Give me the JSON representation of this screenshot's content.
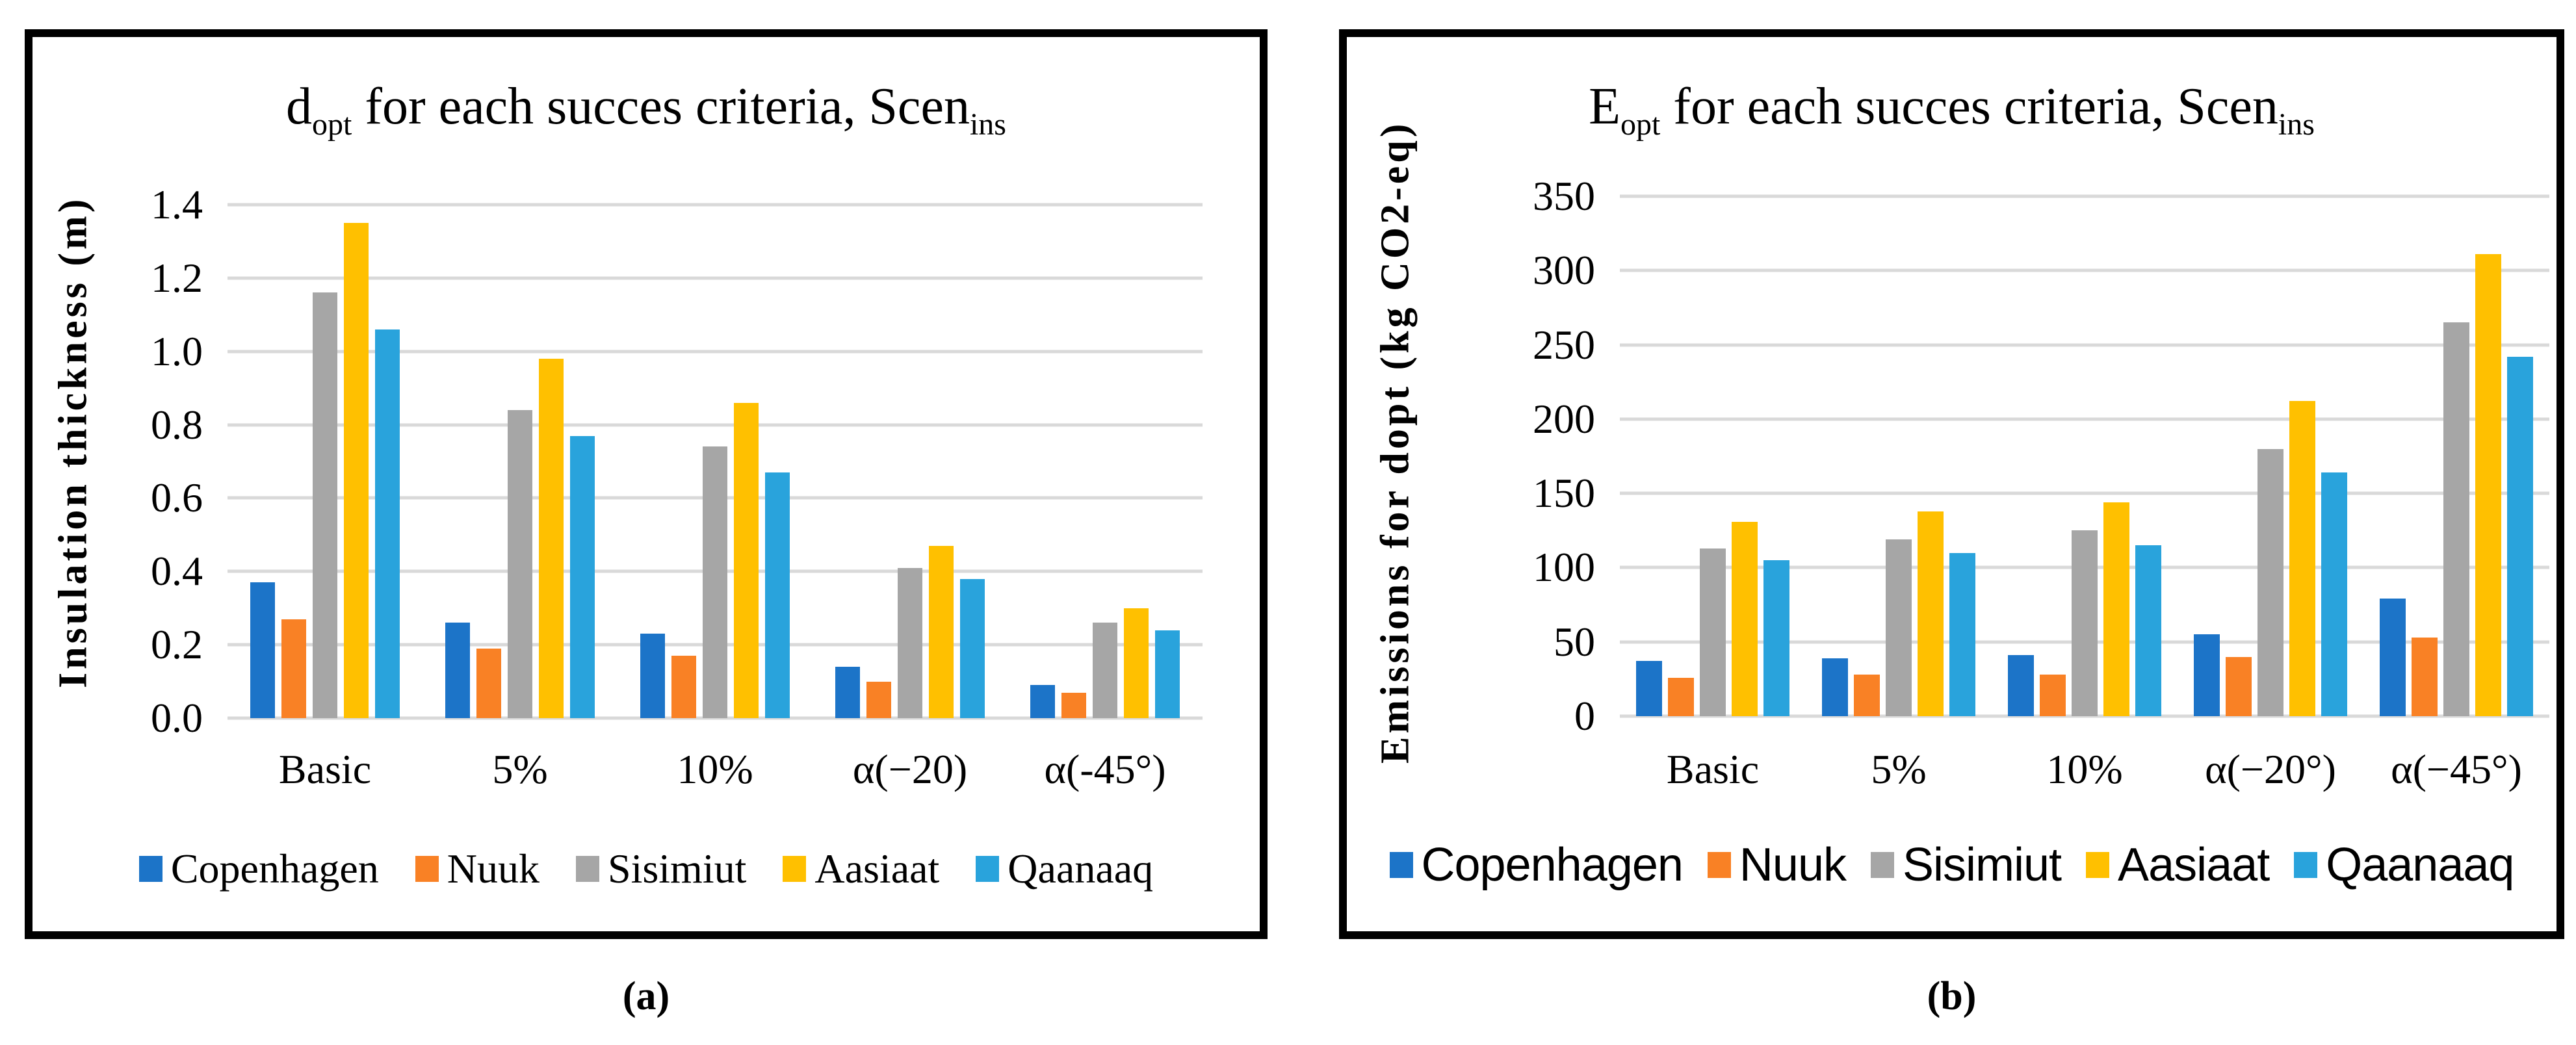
{
  "figure": {
    "captions": [
      "(a)",
      "(b)"
    ]
  },
  "chart_data": [
    {
      "type": "bar",
      "panel": "a",
      "title": "d_opt for each succes criteria, Scen_ins",
      "title_parts": [
        {
          "t": "d"
        },
        {
          "t": "opt",
          "sub": true
        },
        {
          "t": " for each succes criteria, Scen"
        },
        {
          "t": "ins",
          "sub": true
        }
      ],
      "ylabel": "Insulation thickness (m)",
      "xlabel": "",
      "ylim": [
        0,
        1.4
      ],
      "ytick_labels": [
        "0.0",
        "0.2",
        "0.4",
        "0.6",
        "0.8",
        "1.0",
        "1.2",
        "1.4"
      ],
      "grid": true,
      "legend_position": "bottom",
      "categories": [
        "Basic",
        "5%",
        "10%",
        "α(−20)",
        "α(-45°)"
      ],
      "series": [
        {
          "name": "Copenhagen",
          "color": "#1c74c8",
          "values": [
            0.37,
            0.26,
            0.23,
            0.14,
            0.09
          ]
        },
        {
          "name": "Nuuk",
          "color": "#f98125",
          "values": [
            0.27,
            0.19,
            0.17,
            0.1,
            0.07
          ]
        },
        {
          "name": "Sisimiut",
          "color": "#a6a6a6",
          "values": [
            1.16,
            0.84,
            0.74,
            0.41,
            0.26
          ]
        },
        {
          "name": "Aasiaat",
          "color": "#ffc000",
          "values": [
            1.35,
            0.98,
            0.86,
            0.47,
            0.3
          ]
        },
        {
          "name": "Qaanaaq",
          "color": "#29a3dc",
          "values": [
            1.06,
            0.77,
            0.67,
            0.38,
            0.24
          ]
        }
      ]
    },
    {
      "type": "bar",
      "panel": "b",
      "title": "E_opt for each succes criteria, Scen_ins",
      "title_parts": [
        {
          "t": "E"
        },
        {
          "t": "opt",
          "sub": true
        },
        {
          "t": " for each succes criteria, Scen"
        },
        {
          "t": "ins",
          "sub": true
        }
      ],
      "ylabel": "Emissions for dopt (kg CO2-eq)",
      "xlabel": "",
      "ylim": [
        0,
        350
      ],
      "ytick_labels": [
        "0",
        "50",
        "100",
        "150",
        "200",
        "250",
        "300",
        "350"
      ],
      "grid": true,
      "legend_position": "bottom",
      "categories": [
        "Basic",
        "5%",
        "10%",
        "α(−20°)",
        "α(−45°)"
      ],
      "series": [
        {
          "name": "Copenhagen",
          "color": "#1c74c8",
          "values": [
            37,
            39,
            41,
            55,
            79
          ]
        },
        {
          "name": "Nuuk",
          "color": "#f98125",
          "values": [
            26,
            28,
            28,
            40,
            53
          ]
        },
        {
          "name": "Sisimiut",
          "color": "#a6a6a6",
          "values": [
            113,
            119,
            125,
            180,
            265
          ]
        },
        {
          "name": "Aasiaat",
          "color": "#ffc000",
          "values": [
            131,
            138,
            144,
            212,
            311
          ]
        },
        {
          "name": "Qaanaaq",
          "color": "#29a3dc",
          "values": [
            105,
            110,
            115,
            164,
            242
          ]
        }
      ]
    }
  ]
}
